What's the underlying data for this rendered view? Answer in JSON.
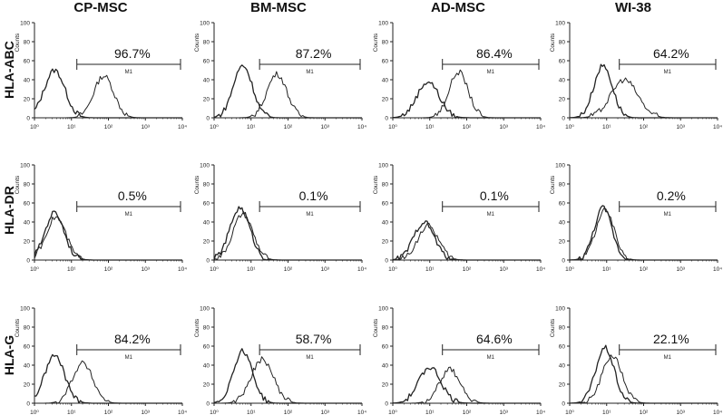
{
  "figure": {
    "columns": [
      "CP-MSC",
      "BM-MSC",
      "AD-MSC",
      "WI-38"
    ],
    "rows": [
      "HLA-ABC",
      "HLA-DR",
      "HLA-G"
    ]
  },
  "colors": {
    "curve": "#222222",
    "axis": "#222222",
    "text": "#111111"
  },
  "chart_data": [
    {
      "type": "area",
      "row": "HLA-ABC",
      "column": "CP-MSC",
      "ylabel": "Counts",
      "gate_label": "M1",
      "gate_start": 14,
      "gate_percent": "96.7%",
      "xscale": "log",
      "xlim": [
        1,
        10000
      ],
      "ylim": [
        0,
        100
      ],
      "xticks": [
        "10⁰",
        "10¹",
        "10²",
        "10³",
        "10⁴"
      ],
      "yticks": [
        "0",
        "20",
        "40",
        "60",
        "80",
        "100"
      ],
      "series": [
        {
          "name": "",
          "peak_x": 3.5,
          "peak_y": 50,
          "width": 0.28
        },
        {
          "name": "",
          "peak_x": 75,
          "peak_y": 44,
          "width": 0.27
        }
      ]
    },
    {
      "type": "area",
      "row": "HLA-ABC",
      "column": "BM-MSC",
      "ylabel": "Counts",
      "gate_label": "M1",
      "gate_start": 17,
      "gate_percent": "87.2%",
      "xscale": "log",
      "xlim": [
        1,
        10000
      ],
      "ylim": [
        0,
        100
      ],
      "xticks": [
        "10⁰",
        "10¹",
        "10²",
        "10³",
        "10⁴"
      ],
      "yticks": [
        "0",
        "20",
        "40",
        "60",
        "80",
        "100"
      ],
      "series": [
        {
          "name": "",
          "peak_x": 6,
          "peak_y": 55,
          "width": 0.26
        },
        {
          "name": "",
          "peak_x": 50,
          "peak_y": 46,
          "width": 0.27
        }
      ]
    },
    {
      "type": "area",
      "row": "HLA-ABC",
      "column": "AD-MSC",
      "ylabel": "Counts",
      "gate_label": "M1",
      "gate_start": 22,
      "gate_percent": "86.4%",
      "xscale": "log",
      "xlim": [
        1,
        10000
      ],
      "ylim": [
        0,
        100
      ],
      "xticks": [
        "10⁰",
        "10¹",
        "10²",
        "10³",
        "10⁴"
      ],
      "yticks": [
        "0",
        "20",
        "40",
        "60",
        "80",
        "100"
      ],
      "series": [
        {
          "name": "",
          "peak_x": 9,
          "peak_y": 38,
          "width": 0.3
        },
        {
          "name": "",
          "peak_x": 60,
          "peak_y": 48,
          "width": 0.26
        }
      ]
    },
    {
      "type": "area",
      "row": "HLA-ABC",
      "column": "WI-38",
      "ylabel": "Counts",
      "gate_label": "M1",
      "gate_start": 22,
      "gate_percent": "64.2%",
      "xscale": "log",
      "xlim": [
        1,
        10000
      ],
      "ylim": [
        0,
        100
      ],
      "xticks": [
        "10⁰",
        "10¹",
        "10²",
        "10³",
        "10⁴"
      ],
      "yticks": [
        "0",
        "20",
        "40",
        "60",
        "80",
        "100"
      ],
      "series": [
        {
          "name": "",
          "peak_x": 8,
          "peak_y": 55,
          "width": 0.25
        },
        {
          "name": "",
          "peak_x": 30,
          "peak_y": 40,
          "width": 0.36
        }
      ]
    },
    {
      "type": "area",
      "row": "HLA-DR",
      "column": "CP-MSC",
      "ylabel": "Counts",
      "gate_label": "M1",
      "gate_start": 14,
      "gate_percent": "0.5%",
      "xscale": "log",
      "xlim": [
        1,
        10000
      ],
      "ylim": [
        0,
        100
      ],
      "xticks": [
        "10⁰",
        "10¹",
        "10²",
        "10³",
        "10⁴"
      ],
      "yticks": [
        "0",
        "20",
        "40",
        "60",
        "80",
        "100"
      ],
      "series": [
        {
          "name": "",
          "peak_x": 3.5,
          "peak_y": 50,
          "width": 0.26
        },
        {
          "name": "",
          "peak_x": 3.8,
          "peak_y": 45,
          "width": 0.27
        }
      ]
    },
    {
      "type": "area",
      "row": "HLA-DR",
      "column": "BM-MSC",
      "ylabel": "Counts",
      "gate_label": "M1",
      "gate_start": 17,
      "gate_percent": "0.1%",
      "xscale": "log",
      "xlim": [
        1,
        10000
      ],
      "ylim": [
        0,
        100
      ],
      "xticks": [
        "10⁰",
        "10¹",
        "10²",
        "10³",
        "10⁴"
      ],
      "yticks": [
        "0",
        "20",
        "40",
        "60",
        "80",
        "100"
      ],
      "series": [
        {
          "name": "",
          "peak_x": 5,
          "peak_y": 55,
          "width": 0.27
        },
        {
          "name": "",
          "peak_x": 6,
          "peak_y": 48,
          "width": 0.27
        }
      ]
    },
    {
      "type": "area",
      "row": "HLA-DR",
      "column": "AD-MSC",
      "ylabel": "Counts",
      "gate_label": "M1",
      "gate_start": 22,
      "gate_percent": "0.1%",
      "xscale": "log",
      "xlim": [
        1,
        10000
      ],
      "ylim": [
        0,
        100
      ],
      "xticks": [
        "10⁰",
        "10¹",
        "10²",
        "10³",
        "10⁴"
      ],
      "yticks": [
        "0",
        "20",
        "40",
        "60",
        "80",
        "100"
      ],
      "series": [
        {
          "name": "",
          "peak_x": 7,
          "peak_y": 40,
          "width": 0.28
        },
        {
          "name": "",
          "peak_x": 9,
          "peak_y": 36,
          "width": 0.28
        }
      ]
    },
    {
      "type": "area",
      "row": "HLA-DR",
      "column": "WI-38",
      "ylabel": "Counts",
      "gate_label": "M1",
      "gate_start": 22,
      "gate_percent": "0.2%",
      "xscale": "log",
      "xlim": [
        1,
        10000
      ],
      "ylim": [
        0,
        100
      ],
      "xticks": [
        "10⁰",
        "10¹",
        "10²",
        "10³",
        "10⁴"
      ],
      "yticks": [
        "0",
        "20",
        "40",
        "60",
        "80",
        "100"
      ],
      "series": [
        {
          "name": "",
          "peak_x": 8,
          "peak_y": 55,
          "width": 0.24
        },
        {
          "name": "",
          "peak_x": 9,
          "peak_y": 52,
          "width": 0.25
        }
      ]
    },
    {
      "type": "area",
      "row": "HLA-G",
      "column": "CP-MSC",
      "ylabel": "Counts",
      "gate_label": "M1",
      "gate_start": 14,
      "gate_percent": "84.2%",
      "xscale": "log",
      "xlim": [
        1,
        10000
      ],
      "ylim": [
        0,
        100
      ],
      "xticks": [
        "10⁰",
        "10¹",
        "10²",
        "10³",
        "10⁴"
      ],
      "yticks": [
        "0",
        "20",
        "40",
        "60",
        "80",
        "100"
      ],
      "series": [
        {
          "name": "",
          "peak_x": 3.5,
          "peak_y": 50,
          "width": 0.27
        },
        {
          "name": "",
          "peak_x": 20,
          "peak_y": 42,
          "width": 0.28
        }
      ]
    },
    {
      "type": "area",
      "row": "HLA-G",
      "column": "BM-MSC",
      "ylabel": "Counts",
      "gate_label": "M1",
      "gate_start": 17,
      "gate_percent": "58.7%",
      "xscale": "log",
      "xlim": [
        1,
        10000
      ],
      "ylim": [
        0,
        100
      ],
      "xticks": [
        "10⁰",
        "10¹",
        "10²",
        "10³",
        "10⁴"
      ],
      "yticks": [
        "0",
        "20",
        "40",
        "60",
        "80",
        "100"
      ],
      "series": [
        {
          "name": "",
          "peak_x": 6,
          "peak_y": 55,
          "width": 0.26
        },
        {
          "name": "",
          "peak_x": 20,
          "peak_y": 46,
          "width": 0.3
        }
      ]
    },
    {
      "type": "area",
      "row": "HLA-G",
      "column": "AD-MSC",
      "ylabel": "Counts",
      "gate_label": "M1",
      "gate_start": 22,
      "gate_percent": "64.6%",
      "xscale": "log",
      "xlim": [
        1,
        10000
      ],
      "ylim": [
        0,
        100
      ],
      "xticks": [
        "10⁰",
        "10¹",
        "10²",
        "10³",
        "10⁴"
      ],
      "yticks": [
        "0",
        "20",
        "40",
        "60",
        "80",
        "100"
      ],
      "series": [
        {
          "name": "",
          "peak_x": 10,
          "peak_y": 38,
          "width": 0.3
        },
        {
          "name": "",
          "peak_x": 35,
          "peak_y": 35,
          "width": 0.29
        }
      ]
    },
    {
      "type": "area",
      "row": "HLA-G",
      "column": "WI-38",
      "ylabel": "Counts",
      "gate_label": "M1",
      "gate_start": 22,
      "gate_percent": "22.1%",
      "xscale": "log",
      "xlim": [
        1,
        10000
      ],
      "ylim": [
        0,
        100
      ],
      "xticks": [
        "10⁰",
        "10¹",
        "10²",
        "10³",
        "10⁴"
      ],
      "yticks": [
        "0",
        "20",
        "40",
        "60",
        "80",
        "100"
      ],
      "series": [
        {
          "name": "",
          "peak_x": 9,
          "peak_y": 58,
          "width": 0.25
        },
        {
          "name": "",
          "peak_x": 14,
          "peak_y": 50,
          "width": 0.27
        }
      ]
    }
  ]
}
